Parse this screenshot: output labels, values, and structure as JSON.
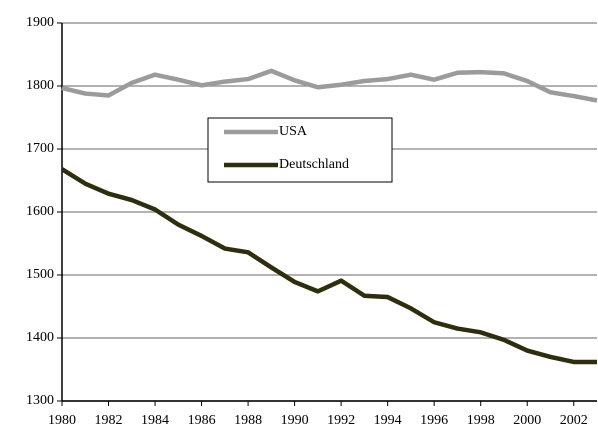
{
  "chart_data": {
    "type": "line",
    "x": [
      1980,
      1981,
      1982,
      1983,
      1984,
      1985,
      1986,
      1987,
      1988,
      1989,
      1990,
      1991,
      1992,
      1993,
      1994,
      1995,
      1996,
      1997,
      1998,
      1999,
      2000,
      2001,
      2002,
      2003
    ],
    "series": [
      {
        "name": "USA",
        "color": "#9b9b9b",
        "values": [
          1797,
          1788,
          1785,
          1805,
          1818,
          1810,
          1801,
          1807,
          1811,
          1824,
          1809,
          1798,
          1802,
          1808,
          1811,
          1818,
          1810,
          1821,
          1822,
          1820,
          1808,
          1790,
          1784,
          1777
        ]
      },
      {
        "name": "Deutschland",
        "color": "#2e2e0e",
        "values": [
          1668,
          1645,
          1629,
          1619,
          1604,
          1580,
          1562,
          1542,
          1536,
          1512,
          1489,
          1474,
          1491,
          1467,
          1465,
          1447,
          1425,
          1415,
          1409,
          1397,
          1380,
          1370,
          1362,
          1362
        ]
      }
    ],
    "xlim": [
      1980,
      2003
    ],
    "xticks": [
      1980,
      1982,
      1984,
      1986,
      1988,
      1990,
      1992,
      1994,
      1996,
      1998,
      2000,
      2002
    ],
    "ylim": [
      1300,
      1900
    ],
    "yticks": [
      1300,
      1400,
      1500,
      1600,
      1700,
      1800,
      1900
    ],
    "grid": true
  }
}
